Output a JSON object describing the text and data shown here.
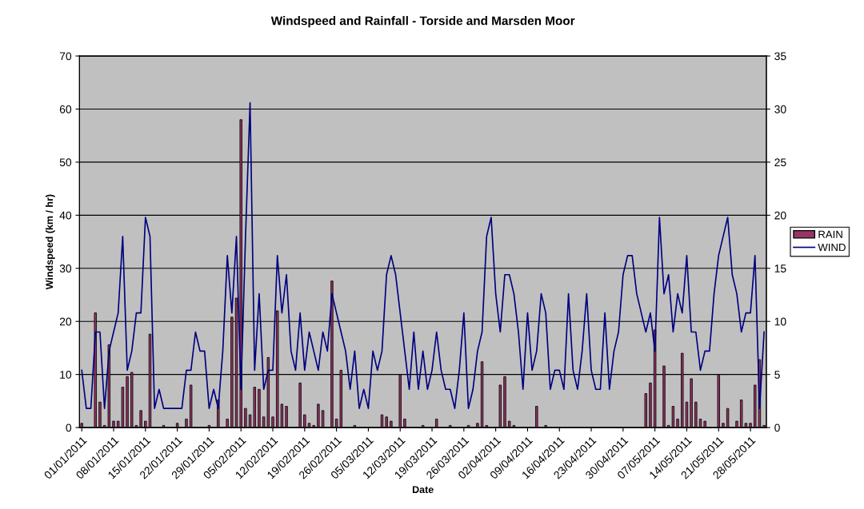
{
  "chart_data": {
    "type": "bar",
    "title": "Windspeed and Rainfall - Torside and Marsden Moor",
    "xlabel": "Date",
    "ylabel": "Windspeed (km / hr)",
    "x": [
      "2011-01-01",
      "2011-01-02",
      "2011-01-03",
      "2011-01-04",
      "2011-01-05",
      "2011-01-06",
      "2011-01-07",
      "2011-01-08",
      "2011-01-09",
      "2011-01-10",
      "2011-01-11",
      "2011-01-12",
      "2011-01-13",
      "2011-01-14",
      "2011-01-15",
      "2011-01-16",
      "2011-01-17",
      "2011-01-18",
      "2011-01-19",
      "2011-01-20",
      "2011-01-21",
      "2011-01-22",
      "2011-01-23",
      "2011-01-24",
      "2011-01-25",
      "2011-01-26",
      "2011-01-27",
      "2011-01-28",
      "2011-01-29",
      "2011-01-30",
      "2011-01-31",
      "2011-02-01",
      "2011-02-02",
      "2011-02-03",
      "2011-02-04",
      "2011-02-05",
      "2011-02-06",
      "2011-02-07",
      "2011-02-08",
      "2011-02-09",
      "2011-02-10",
      "2011-02-11",
      "2011-02-12",
      "2011-02-13",
      "2011-02-14",
      "2011-02-15",
      "2011-02-16",
      "2011-02-17",
      "2011-02-18",
      "2011-02-19",
      "2011-02-20",
      "2011-02-21",
      "2011-02-22",
      "2011-02-23",
      "2011-02-24",
      "2011-02-25",
      "2011-02-26",
      "2011-02-27",
      "2011-02-28",
      "2011-03-01",
      "2011-03-02",
      "2011-03-03",
      "2011-03-04",
      "2011-03-05",
      "2011-03-06",
      "2011-03-07",
      "2011-03-08",
      "2011-03-09",
      "2011-03-10",
      "2011-03-11",
      "2011-03-12",
      "2011-03-13",
      "2011-03-14",
      "2011-03-15",
      "2011-03-16",
      "2011-03-17",
      "2011-03-18",
      "2011-03-19",
      "2011-03-20",
      "2011-03-21",
      "2011-03-22",
      "2011-03-23",
      "2011-03-24",
      "2011-03-25",
      "2011-03-26",
      "2011-03-27",
      "2011-03-28",
      "2011-03-29",
      "2011-03-30",
      "2011-03-31",
      "2011-04-01",
      "2011-04-02",
      "2011-04-03",
      "2011-04-04",
      "2011-04-05",
      "2011-04-06",
      "2011-04-07",
      "2011-04-08",
      "2011-04-09",
      "2011-04-10",
      "2011-04-11",
      "2011-04-12",
      "2011-04-13",
      "2011-04-14",
      "2011-04-15",
      "2011-04-16",
      "2011-04-17",
      "2011-04-18",
      "2011-04-19",
      "2011-04-20",
      "2011-04-21",
      "2011-04-22",
      "2011-04-23",
      "2011-04-24",
      "2011-04-25",
      "2011-04-26",
      "2011-04-27",
      "2011-04-28",
      "2011-04-29",
      "2011-04-30",
      "2011-05-01",
      "2011-05-02",
      "2011-05-03",
      "2011-05-04",
      "2011-05-05",
      "2011-05-06",
      "2011-05-07",
      "2011-05-08",
      "2011-05-09",
      "2011-05-10",
      "2011-05-11",
      "2011-05-12",
      "2011-05-13",
      "2011-05-14",
      "2011-05-15",
      "2011-05-16",
      "2011-05-17",
      "2011-05-18",
      "2011-05-19",
      "2011-05-20",
      "2011-05-21",
      "2011-05-22",
      "2011-05-23",
      "2011-05-24",
      "2011-05-25",
      "2011-05-26",
      "2011-05-27",
      "2011-05-28",
      "2011-05-29",
      "2011-05-30",
      "2011-05-31"
    ],
    "series": [
      {
        "name": "RAIN",
        "axis": "y2",
        "color": "#993366",
        "values": [
          0.4,
          0,
          0,
          10.8,
          2.4,
          0.2,
          7.8,
          0.6,
          0.6,
          3.8,
          4.8,
          5.2,
          0.2,
          1.6,
          0.6,
          8.8,
          0,
          0,
          0.2,
          0,
          0,
          0.4,
          0,
          0.8,
          4.0,
          0,
          0,
          0,
          0.2,
          0,
          2.6,
          0,
          0.8,
          10.4,
          12.2,
          29.0,
          1.8,
          1.2,
          3.8,
          3.6,
          1.0,
          6.6,
          1.0,
          11.0,
          2.2,
          2.0,
          0,
          0,
          4.2,
          1.2,
          0.4,
          0.2,
          2.2,
          1.6,
          0,
          13.8,
          0.8,
          5.4,
          0,
          0,
          0.2,
          0,
          0,
          0,
          0,
          0,
          1.2,
          1.0,
          0.6,
          0,
          5.0,
          0.8,
          0,
          0,
          0,
          0.2,
          0,
          0,
          0.8,
          0,
          0,
          0.2,
          0,
          0,
          0,
          0.2,
          0,
          0.4,
          6.2,
          0.2,
          0,
          0,
          4.0,
          4.8,
          0.6,
          0.2,
          0,
          0,
          0,
          0,
          2.0,
          0,
          0.2,
          0,
          0,
          0,
          0,
          0,
          0,
          0,
          0,
          0,
          0,
          0,
          0,
          0,
          0,
          0,
          0,
          0,
          0,
          0,
          0,
          0,
          3.2,
          4.2,
          9.2,
          0,
          5.8,
          0.2,
          2.0,
          0.8,
          7.0,
          2.4,
          4.6,
          2.4,
          0.8,
          0.6,
          0,
          0,
          5.0,
          0.4,
          1.8,
          0,
          0.6,
          2.6,
          0.4,
          0.4,
          4.0,
          6.4,
          0.2
        ]
      },
      {
        "name": "WIND",
        "type": "line",
        "color": "#000080",
        "values": [
          10.8,
          3.6,
          3.6,
          18,
          18,
          3.6,
          14.4,
          18,
          21.6,
          36,
          10.8,
          14.4,
          21.6,
          21.6,
          39.6,
          36,
          3.6,
          7.2,
          3.6,
          3.6,
          3.6,
          3.6,
          3.6,
          10.8,
          10.8,
          18,
          14.4,
          14.4,
          3.6,
          7.2,
          3.6,
          14.4,
          32.4,
          21.6,
          36,
          7.2,
          36,
          61.2,
          10.8,
          25.2,
          7.2,
          10.8,
          10.8,
          32.4,
          21.6,
          28.8,
          14.4,
          10.8,
          21.6,
          10.8,
          18,
          14.4,
          10.8,
          18,
          14.4,
          25.2,
          21.6,
          18,
          14.4,
          7.2,
          14.4,
          3.6,
          7.2,
          3.6,
          14.4,
          10.8,
          14.4,
          28.8,
          32.4,
          28.8,
          21.6,
          14.4,
          7.2,
          18,
          7.2,
          14.4,
          7.2,
          10.8,
          18,
          10.8,
          7.2,
          7.2,
          3.6,
          10.8,
          21.6,
          3.6,
          7.2,
          14.4,
          18,
          36,
          39.6,
          25.2,
          18,
          28.8,
          28.8,
          25.2,
          18,
          7.2,
          21.6,
          10.8,
          14.4,
          25.2,
          21.6,
          7.2,
          10.8,
          10.8,
          7.2,
          25.2,
          10.8,
          7.2,
          14.4,
          25.2,
          10.8,
          7.2,
          7.2,
          21.6,
          7.2,
          14.4,
          18,
          28.8,
          32.4,
          32.4,
          25.2,
          21.6,
          18,
          21.6,
          14.4,
          39.6,
          25.2,
          28.8,
          18,
          25.2,
          21.6,
          32.4,
          18,
          18,
          10.8,
          14.4,
          14.4,
          25.2,
          32.4,
          36,
          39.6,
          28.8,
          25.2,
          18,
          21.6,
          21.6,
          32.4,
          3.6,
          18
        ]
      }
    ],
    "xlim": [
      "2010-12-31T12:00",
      "2011-05-31T12:00"
    ],
    "xticks": [
      {
        "value": "2011-01-01",
        "label": "01/01/2011"
      },
      {
        "value": "2011-01-08",
        "label": "08/01/2011"
      },
      {
        "value": "2011-01-15",
        "label": "15/01/2011"
      },
      {
        "value": "2011-01-22",
        "label": "22/01/2011"
      },
      {
        "value": "2011-01-29",
        "label": "29/01/2011"
      },
      {
        "value": "2011-02-05",
        "label": "05/02/2011"
      },
      {
        "value": "2011-02-12",
        "label": "12/02/2011"
      },
      {
        "value": "2011-02-19",
        "label": "19/02/2011"
      },
      {
        "value": "2011-02-26",
        "label": "26/02/2011"
      },
      {
        "value": "2011-03-05",
        "label": "05/03/2011"
      },
      {
        "value": "2011-03-12",
        "label": "12/03/2011"
      },
      {
        "value": "2011-03-19",
        "label": "19/03/2011"
      },
      {
        "value": "2011-03-26",
        "label": "26/03/2011"
      },
      {
        "value": "2011-04-02",
        "label": "02/04/2011"
      },
      {
        "value": "2011-04-09",
        "label": "09/04/2011"
      },
      {
        "value": "2011-04-16",
        "label": "16/04/2011"
      },
      {
        "value": "2011-04-23",
        "label": "23/04/2011"
      },
      {
        "value": "2011-04-30",
        "label": "30/04/2011"
      },
      {
        "value": "2011-05-07",
        "label": "07/05/2011"
      },
      {
        "value": "2011-05-14",
        "label": "14/05/2011"
      },
      {
        "value": "2011-05-21",
        "label": "21/05/2011"
      },
      {
        "value": "2011-05-28",
        "label": "28/05/2011"
      }
    ],
    "ylim": [
      0,
      70
    ],
    "yticks": [
      0,
      10,
      20,
      30,
      40,
      50,
      60,
      70
    ],
    "y2lim": [
      0,
      35
    ],
    "y2ticks": [
      0,
      5,
      10,
      15,
      20,
      25,
      30,
      35
    ],
    "grid": "y",
    "legend": "right"
  }
}
